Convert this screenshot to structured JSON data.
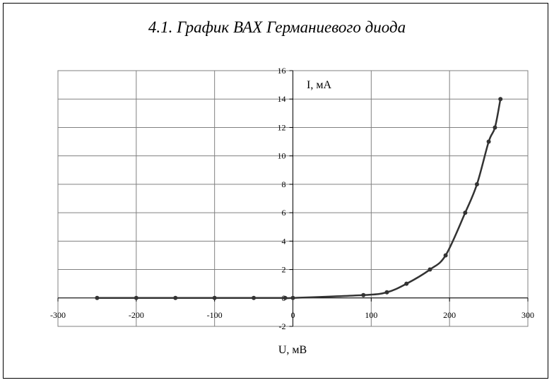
{
  "chart_data": {
    "type": "scatter",
    "title": "4.1. График ВАХ Германиевого диода",
    "xlabel": "U, мВ",
    "ylabel": "I, мА",
    "xlim": [
      -300,
      300
    ],
    "ylim": [
      -2,
      16
    ],
    "x_ticks": [
      -300,
      -200,
      -100,
      0,
      100,
      200,
      300
    ],
    "y_ticks": [
      -2,
      0,
      2,
      4,
      6,
      8,
      10,
      12,
      14,
      16
    ],
    "grid": true,
    "legend": "none",
    "line_color": "#333333",
    "marker_color": "#333333",
    "series": [
      {
        "x": [
          -250,
          -200,
          -150,
          -100,
          -50,
          -10,
          0,
          90,
          120,
          145,
          175,
          195,
          220,
          235,
          250,
          258,
          265
        ],
        "y": [
          0,
          0,
          0,
          0,
          0,
          0,
          0,
          0.2,
          0.4,
          1,
          2,
          3,
          6,
          8,
          11,
          12,
          14
        ]
      }
    ]
  }
}
